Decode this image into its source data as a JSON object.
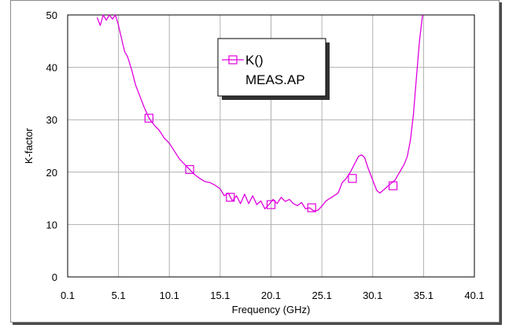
{
  "chart_data": {
    "type": "line",
    "title": "",
    "xlabel": "Frequency (GHz)",
    "ylabel": "K-factor",
    "xlim": [
      0.1,
      40.1
    ],
    "ylim": [
      0,
      50
    ],
    "x_ticks": [
      "0.1",
      "5.1",
      "10.1",
      "15.1",
      "20.1",
      "25.1",
      "30.1",
      "35.1",
      "40.1"
    ],
    "y_ticks": [
      "0",
      "10",
      "20",
      "30",
      "40",
      "50"
    ],
    "grid": true,
    "legend": {
      "position": "top-center",
      "entries": [
        "K()",
        "MEAS.AP"
      ]
    },
    "colors": {
      "series": "#e000e0",
      "grid": "#b0b0b0",
      "frame_shadow": "#4a4a4a"
    },
    "series": [
      {
        "name": "K()",
        "x": [
          3.0,
          3.3,
          3.6,
          3.9,
          4.2,
          4.5,
          4.8,
          5.1,
          5.4,
          5.7,
          6.0,
          6.4,
          6.8,
          7.2,
          7.6,
          8.1,
          8.6,
          9.1,
          9.6,
          10.1,
          10.6,
          11.1,
          11.6,
          12.1,
          12.6,
          13.1,
          13.6,
          14.1,
          14.6,
          15.1,
          15.5,
          15.9,
          16.3,
          16.7,
          17.1,
          17.5,
          17.9,
          18.3,
          18.7,
          19.1,
          19.5,
          19.9,
          20.3,
          20.7,
          21.1,
          21.5,
          21.9,
          22.3,
          22.7,
          23.1,
          23.5,
          23.9,
          24.3,
          24.7,
          25.1,
          25.5,
          25.9,
          26.3,
          26.7,
          27.1,
          27.5,
          27.9,
          28.3,
          28.7,
          29.0,
          29.3,
          29.6,
          29.9,
          30.2,
          30.5,
          30.8,
          31.1,
          31.4,
          31.7,
          32.0,
          32.3,
          32.6,
          32.9,
          33.2,
          33.5,
          33.8,
          34.1,
          34.4,
          34.7,
          35.0
        ],
        "y": [
          49.5,
          48.0,
          50.0,
          49.0,
          50.0,
          49.2,
          50.0,
          48.0,
          45.5,
          43.0,
          42.0,
          39.5,
          36.5,
          34.5,
          32.5,
          30.3,
          29.0,
          28.0,
          26.5,
          25.5,
          24.0,
          22.5,
          21.5,
          20.5,
          19.5,
          18.8,
          18.2,
          18.0,
          17.5,
          16.8,
          15.5,
          16.0,
          14.5,
          15.5,
          14.0,
          15.8,
          14.0,
          15.5,
          13.8,
          14.5,
          13.0,
          13.8,
          14.8,
          14.0,
          15.2,
          14.4,
          14.8,
          14.0,
          13.6,
          14.2,
          13.0,
          13.2,
          12.6,
          12.7,
          13.5,
          14.5,
          15.0,
          15.5,
          16.0,
          18.0,
          18.8,
          20.0,
          21.5,
          23.0,
          23.3,
          22.8,
          21.0,
          19.5,
          18.0,
          16.5,
          16.0,
          16.5,
          17.0,
          17.5,
          18.0,
          18.5,
          19.5,
          20.5,
          21.5,
          23.0,
          26.0,
          31.0,
          38.0,
          45.0,
          50.0
        ]
      }
    ],
    "markers": {
      "x": [
        8.1,
        12.1,
        16.1,
        20.1,
        24.1,
        28.1,
        32.1
      ],
      "y": [
        30.3,
        20.5,
        15.2,
        13.8,
        13.2,
        18.8,
        17.4
      ]
    }
  }
}
